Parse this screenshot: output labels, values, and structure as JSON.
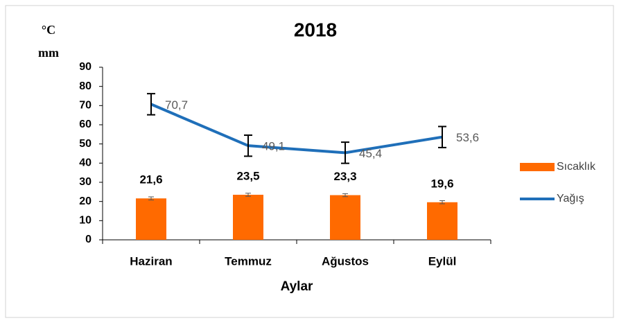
{
  "chart_data": {
    "type": "combo",
    "title": "2018",
    "y_labels": [
      "°C",
      "mm"
    ],
    "x_label": "Aylar",
    "categories": [
      "Haziran",
      "Temmuz",
      "Ağustos",
      "Eylül"
    ],
    "series": [
      {
        "name": "Sıcaklık",
        "type": "bar",
        "color": "#ff6a00",
        "values": [
          21.6,
          23.5,
          23.3,
          19.6
        ],
        "value_labels": [
          "21,6",
          "23,5",
          "23,3",
          "19,6"
        ],
        "errors": [
          0.8,
          0.8,
          0.8,
          0.8
        ]
      },
      {
        "name": "Yağış",
        "type": "line",
        "color": "#1f6fb9",
        "values": [
          70.7,
          49.1,
          45.4,
          53.6
        ],
        "value_labels": [
          "70,7",
          "49,1",
          "45,4",
          "53,6"
        ],
        "errors": [
          5.5,
          5.5,
          5.5,
          5.5
        ]
      }
    ],
    "ylim": [
      0,
      90
    ],
    "yticks": [
      0,
      10,
      20,
      30,
      40,
      50,
      60,
      70,
      80,
      90
    ],
    "grid": false,
    "legend": "right"
  }
}
